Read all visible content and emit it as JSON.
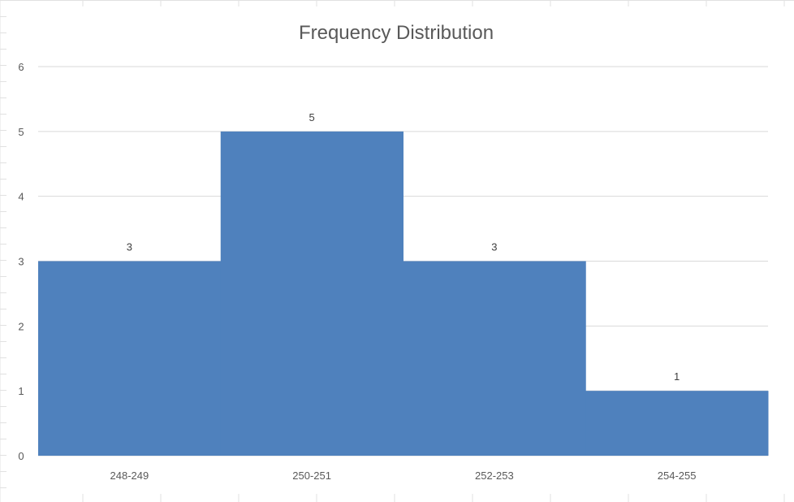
{
  "colors": {
    "bar": "#4f81bd",
    "gridline": "#d9d9d9",
    "text": "#595959",
    "sheet_grid": "#e1e1e1"
  },
  "chart_data": {
    "type": "bar",
    "title": "Frequency Distribution",
    "categories": [
      "248-249",
      "250-251",
      "252-253",
      "254-255"
    ],
    "values": [
      3,
      5,
      3,
      1
    ],
    "data_labels": [
      "3",
      "5",
      "3",
      "1"
    ],
    "xlabel": "",
    "ylabel": "",
    "ylim": [
      0,
      6
    ],
    "y_ticks": [
      "0",
      "1",
      "2",
      "3",
      "4",
      "5",
      "6"
    ],
    "bar_gap": 0,
    "grid": true,
    "legend": "none"
  }
}
